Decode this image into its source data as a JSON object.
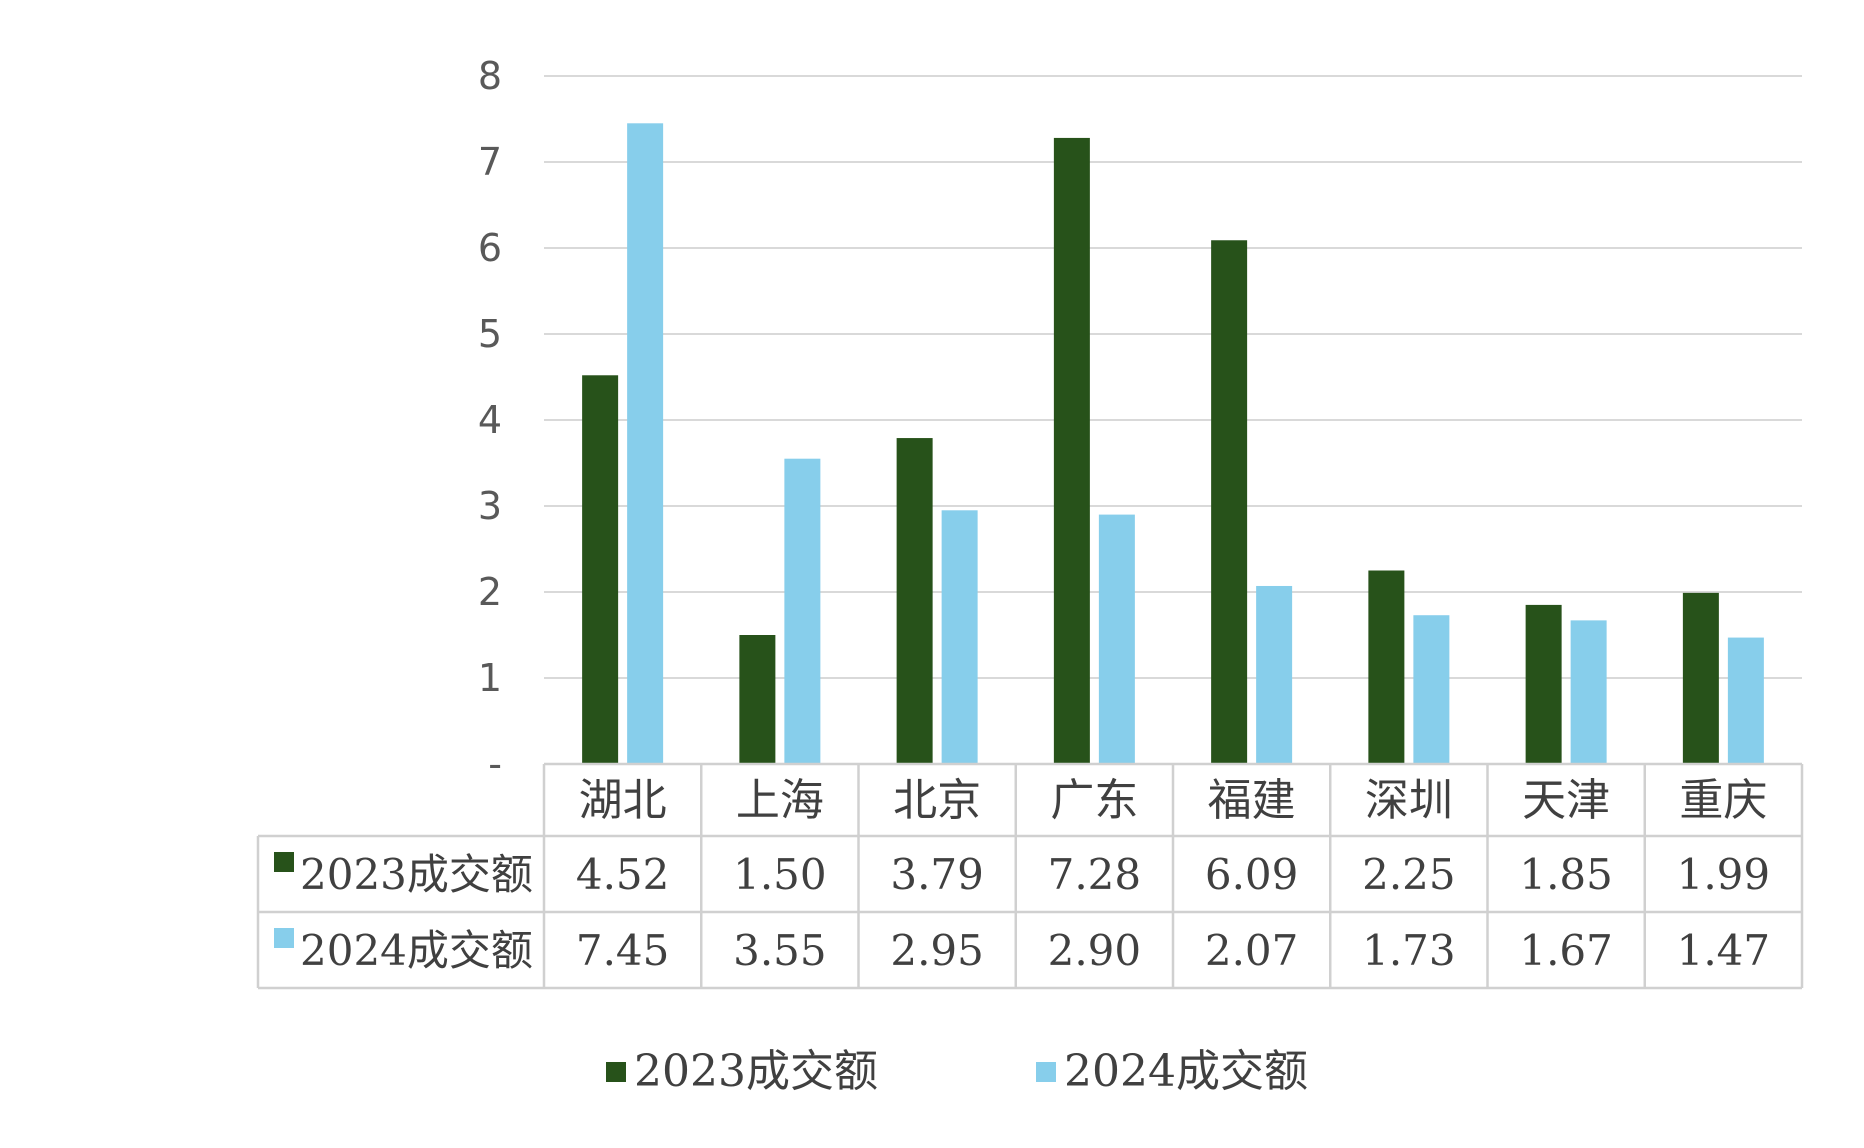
{
  "chart_data": {
    "type": "bar",
    "categories": [
      "湖北",
      "上海",
      "北京",
      "广东",
      "福建",
      "深圳",
      "天津",
      "重庆"
    ],
    "series": [
      {
        "name": "2023成交额",
        "color": "#27521a",
        "values": [
          4.52,
          1.5,
          3.79,
          7.28,
          6.09,
          2.25,
          1.85,
          1.99
        ],
        "labels": [
          "4.52",
          "1.50",
          "3.79",
          "7.28",
          "6.09",
          "2.25",
          "1.85",
          "1.99"
        ]
      },
      {
        "name": "2024成交额",
        "color": "#87ceeb",
        "values": [
          7.45,
          3.55,
          2.95,
          2.9,
          2.07,
          1.73,
          1.67,
          1.47
        ],
        "labels": [
          "7.45",
          "3.55",
          "2.95",
          "2.90",
          "2.07",
          "1.73",
          "1.67",
          "1.47"
        ]
      }
    ],
    "yticks": [
      "-",
      "1",
      "2",
      "3",
      "4",
      "5",
      "6",
      "7",
      "8"
    ],
    "ylim": [
      0,
      8
    ],
    "grid": true,
    "data_table": true,
    "legend_position": "bottom"
  }
}
